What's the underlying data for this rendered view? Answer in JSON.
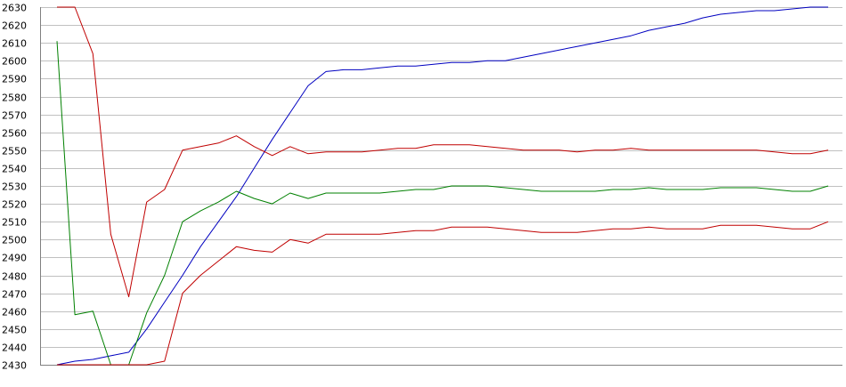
{
  "chart_data": {
    "type": "line",
    "title": "",
    "xlabel": "",
    "ylabel": "",
    "ylim": [
      2430,
      2630
    ],
    "grid": true,
    "legend": "none",
    "yticks": [
      "2430",
      "2440",
      "2450",
      "2460",
      "2470",
      "2480",
      "2490",
      "2500",
      "2510",
      "2520",
      "2530",
      "2540",
      "2550",
      "2560",
      "2570",
      "2580",
      "2590",
      "2600",
      "2610",
      "2620",
      "2630"
    ],
    "x": [
      1,
      2,
      3,
      4,
      5,
      6,
      7,
      8,
      9,
      10,
      11,
      12,
      13,
      14,
      15,
      16,
      17,
      18,
      19,
      20,
      21,
      22,
      23,
      24,
      25,
      26,
      27,
      28,
      29,
      30,
      31,
      32,
      33,
      34,
      35,
      36,
      37,
      38,
      39,
      40,
      41,
      42,
      43,
      44
    ],
    "series": [
      {
        "color": "#0000c0",
        "values": [
          2430,
          2432,
          2433,
          2435,
          2437,
          2450,
          2465,
          2480,
          2496,
          2510,
          2524,
          2540,
          2556,
          2571,
          2586,
          2594,
          2595,
          2595,
          2596,
          2597,
          2597,
          2598,
          2599,
          2599,
          2600,
          2600,
          2602,
          2604,
          2606,
          2608,
          2610,
          2612,
          2614,
          2617,
          2619,
          2621,
          2624,
          2626,
          2627,
          2628,
          2628,
          2629,
          2630,
          2630
        ]
      },
      {
        "color": "#c00000",
        "values": [
          2630,
          2630,
          2604,
          2503,
          2468,
          2521,
          2528,
          2550,
          2552,
          2554,
          2558,
          2552,
          2547,
          2552,
          2548,
          2549,
          2549,
          2549,
          2550,
          2551,
          2551,
          2553,
          2553,
          2553,
          2552,
          2551,
          2550,
          2550,
          2550,
          2549,
          2550,
          2550,
          2551,
          2550,
          2550,
          2550,
          2550,
          2550,
          2550,
          2550,
          2549,
          2548,
          2548,
          2550
        ]
      },
      {
        "color": "#008000",
        "values": [
          2611,
          2458,
          2460,
          2430,
          2430,
          2459,
          2480,
          2510,
          2516,
          2521,
          2527,
          2523,
          2520,
          2526,
          2523,
          2526,
          2526,
          2526,
          2526,
          2527,
          2528,
          2528,
          2530,
          2530,
          2530,
          2529,
          2528,
          2527,
          2527,
          2527,
          2527,
          2528,
          2528,
          2529,
          2528,
          2528,
          2528,
          2529,
          2529,
          2529,
          2528,
          2527,
          2527,
          2530
        ]
      },
      {
        "color": "#c00000",
        "values": [
          2430,
          2430,
          2430,
          2430,
          2430,
          2430,
          2432,
          2470,
          2480,
          2488,
          2496,
          2494,
          2493,
          2500,
          2498,
          2503,
          2503,
          2503,
          2503,
          2504,
          2505,
          2505,
          2507,
          2507,
          2507,
          2506,
          2505,
          2504,
          2504,
          2504,
          2505,
          2506,
          2506,
          2507,
          2506,
          2506,
          2506,
          2508,
          2508,
          2508,
          2507,
          2506,
          2506,
          2510
        ]
      }
    ]
  }
}
